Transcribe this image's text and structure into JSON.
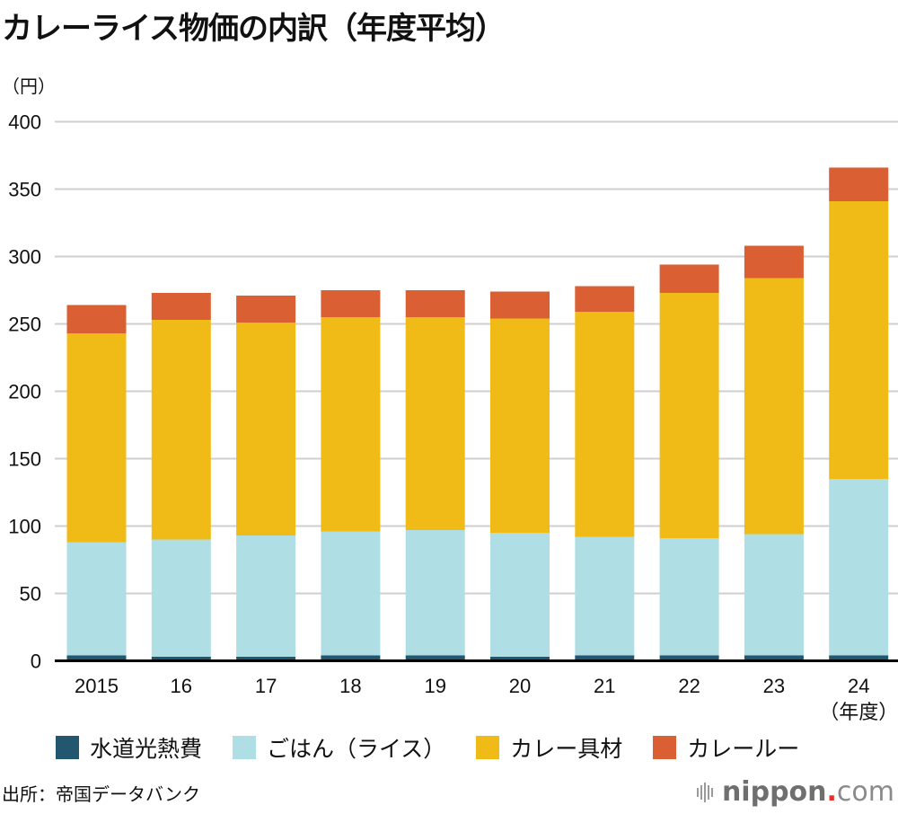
{
  "title": "カレーライス物価の内訳（年度平均）",
  "unit_label": "（円）",
  "source": "出所：帝国データバンク",
  "logo": {
    "main": "nippon",
    "dot": ".",
    "suffix": "com",
    "icon": "sound-bars-icon"
  },
  "chart_data": {
    "type": "bar",
    "stacked": true,
    "title": "カレーライス物価の内訳（年度平均）",
    "xlabel": "（年度）",
    "ylabel": "（円）",
    "ylim": [
      0,
      400
    ],
    "yticks": [
      0,
      50,
      100,
      150,
      200,
      250,
      300,
      350,
      400
    ],
    "grid": true,
    "legend_position": "bottom",
    "categories": [
      "2015",
      "16",
      "17",
      "18",
      "19",
      "20",
      "21",
      "22",
      "23",
      "24"
    ],
    "series": [
      {
        "name": "水道光熱費",
        "color": "#23566f",
        "values": [
          4,
          3,
          3,
          4,
          4,
          3,
          4,
          4,
          4,
          4
        ]
      },
      {
        "name": "ごはん（ライス）",
        "color": "#afdfe4",
        "values": [
          84,
          87,
          90,
          92,
          93,
          92,
          88,
          87,
          90,
          131
        ]
      },
      {
        "name": "カレー具材",
        "color": "#f0bb16",
        "values": [
          155,
          163,
          158,
          159,
          158,
          159,
          167,
          182,
          190,
          206
        ]
      },
      {
        "name": "カレールー",
        "color": "#da5f33",
        "values": [
          21,
          20,
          20,
          20,
          20,
          20,
          19,
          21,
          24,
          25
        ]
      }
    ],
    "totals": [
      264,
      273,
      271,
      275,
      275,
      274,
      278,
      294,
      308,
      366
    ]
  }
}
